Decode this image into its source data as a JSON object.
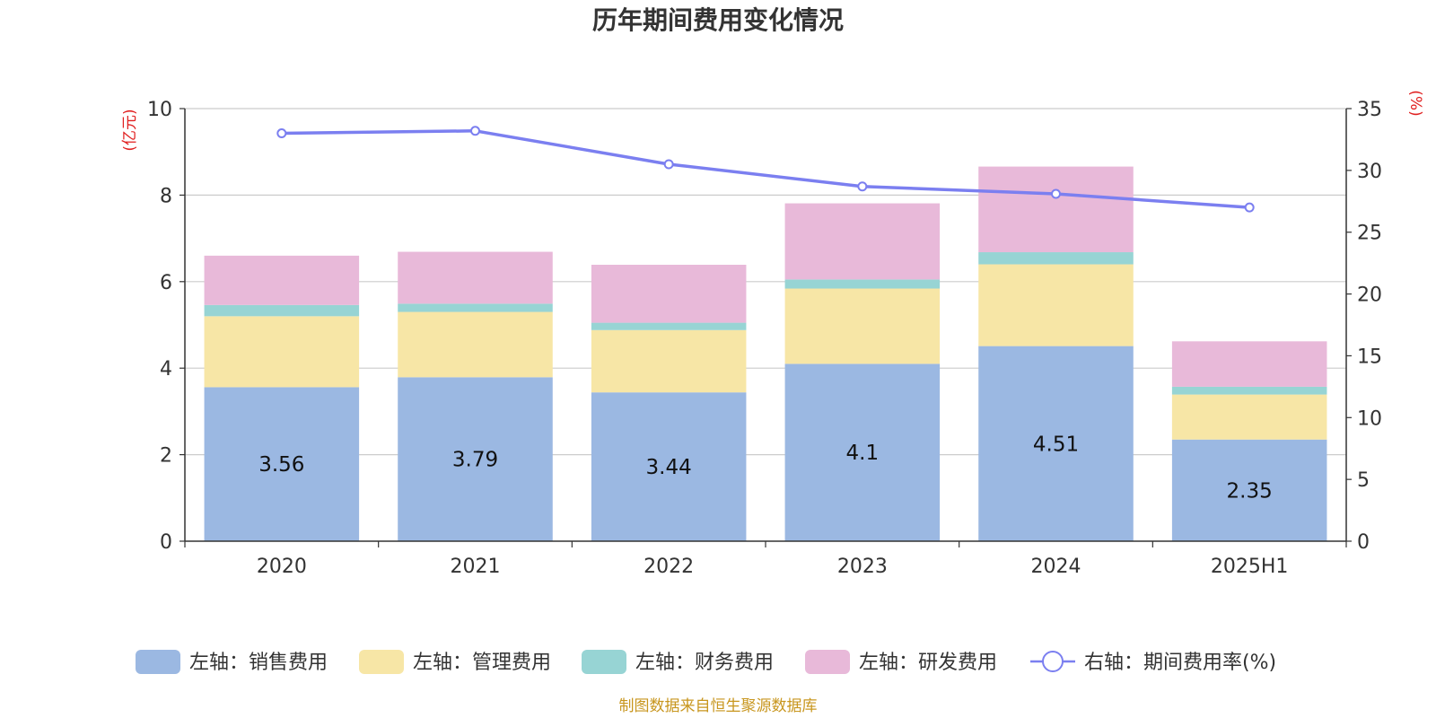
{
  "chart_data": {
    "type": "bar",
    "title": "历年期间费用变化情况",
    "left_axis_unit": "(亿元)",
    "right_axis_unit": "(%)",
    "categories": [
      "2020",
      "2021",
      "2022",
      "2023",
      "2024",
      "2025H1"
    ],
    "left_ylim": [
      0,
      10
    ],
    "left_yticks": [
      "0",
      "2",
      "4",
      "6",
      "8",
      "10"
    ],
    "right_ylim": [
      0,
      35
    ],
    "right_yticks": [
      "0",
      "5",
      "10",
      "15",
      "20",
      "25",
      "30",
      "35"
    ],
    "grid": true,
    "legend_position": "bottom",
    "series": [
      {
        "name": "左轴：销售费用",
        "type": "bar",
        "stack": true,
        "axis": "left",
        "color": "#9bb8e2",
        "values": [
          3.56,
          3.79,
          3.44,
          4.1,
          4.51,
          2.35
        ],
        "labels": [
          "3.56",
          "3.79",
          "3.44",
          "4.1",
          "4.51",
          "2.35"
        ]
      },
      {
        "name": "左轴：管理费用",
        "type": "bar",
        "stack": true,
        "axis": "left",
        "color": "#f7e6a6",
        "values": [
          1.64,
          1.51,
          1.44,
          1.74,
          1.89,
          1.04
        ]
      },
      {
        "name": "左轴：财务费用",
        "type": "bar",
        "stack": true,
        "axis": "left",
        "color": "#97d4d4",
        "values": [
          0.26,
          0.19,
          0.17,
          0.21,
          0.28,
          0.18
        ]
      },
      {
        "name": "左轴：研发费用",
        "type": "bar",
        "stack": true,
        "axis": "left",
        "color": "#e8b9d9",
        "values": [
          1.14,
          1.2,
          1.34,
          1.76,
          1.98,
          1.05
        ]
      },
      {
        "name": "右轴：期间费用率(%)",
        "type": "line",
        "axis": "right",
        "color": "#7b7ff0",
        "values": [
          33.0,
          33.2,
          30.5,
          28.7,
          28.1,
          27.0
        ]
      }
    ]
  },
  "footer": {
    "source": "制图数据来自恒生聚源数据库"
  }
}
